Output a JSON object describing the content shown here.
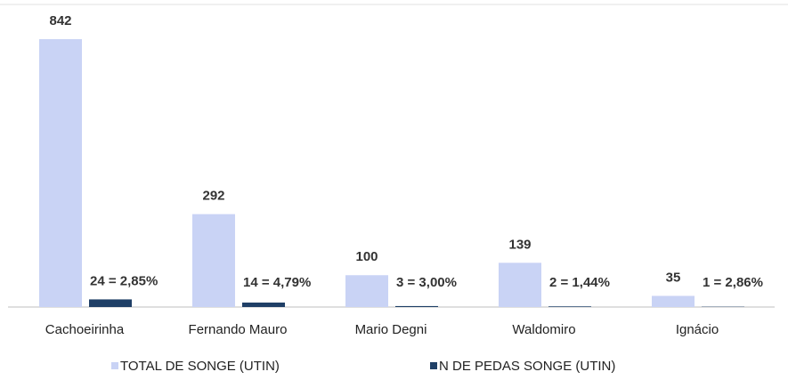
{
  "chart_data": {
    "type": "bar",
    "categories": [
      "Cachoeirinha",
      "Fernando Mauro",
      "Mario Degni",
      "Waldomiro",
      "Ignácio"
    ],
    "series": [
      {
        "name": "TOTAL DE SONGE (UTIN)",
        "color": "#c9d3f5",
        "values": [
          842,
          292,
          100,
          139,
          35
        ]
      },
      {
        "name": "N DE PEDAS SONGE (UTIN)",
        "color": "#1f3f66",
        "values": [
          24,
          14,
          3,
          2,
          1
        ],
        "value_labels": [
          "24 = 2,85%",
          "14 = 4,79%",
          "3 = 3,00%",
          "2 = 1,44%",
          "1 = 2,86%"
        ]
      }
    ],
    "legend": "bottom"
  }
}
